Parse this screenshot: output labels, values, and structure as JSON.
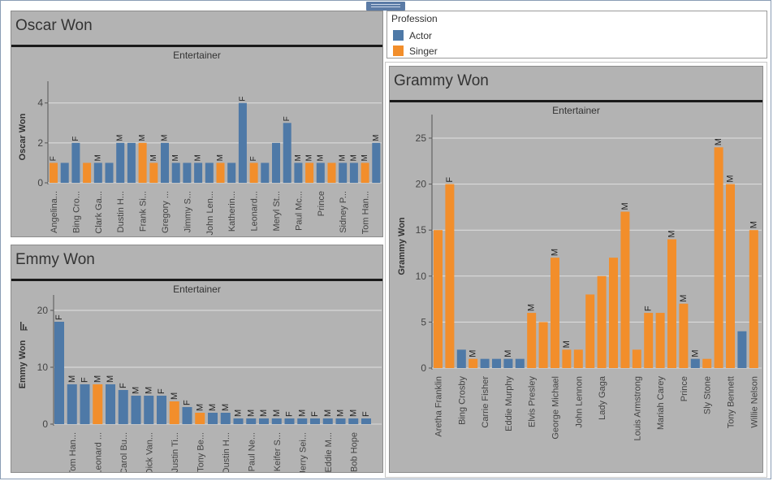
{
  "legend": {
    "title": "Profession",
    "items": [
      {
        "label": "Actor",
        "color": "#4e79a7"
      },
      {
        "label": "Singer",
        "color": "#f28e2b"
      }
    ]
  },
  "colors": {
    "Actor": "#4e79a7",
    "Singer": "#f28e2b",
    "panel_bg": "#b3b3b3"
  },
  "chart_data": [
    {
      "id": "oscar",
      "type": "bar",
      "title": "Oscar Won",
      "subtitle": "Entertainer",
      "ylabel": "Oscar Won",
      "ylim": [
        0,
        4.6
      ],
      "yticks": [
        0,
        2,
        4
      ],
      "grid": true,
      "bars": [
        {
          "value": 1,
          "gender": "F",
          "profession": "Singer",
          "label": "Angelina..."
        },
        {
          "value": 1,
          "gender": "",
          "profession": "Actor",
          "label": ""
        },
        {
          "value": 2,
          "gender": "F",
          "profession": "Actor",
          "label": "Bing Cro..."
        },
        {
          "value": 1,
          "gender": "",
          "profession": "Singer",
          "label": ""
        },
        {
          "value": 1,
          "gender": "M",
          "profession": "Actor",
          "label": "Clark Ga..."
        },
        {
          "value": 1,
          "gender": "",
          "profession": "Actor",
          "label": ""
        },
        {
          "value": 2,
          "gender": "M",
          "profession": "Actor",
          "label": "Dustin H..."
        },
        {
          "value": 2,
          "gender": "",
          "profession": "Actor",
          "label": ""
        },
        {
          "value": 2,
          "gender": "M",
          "profession": "Singer",
          "label": "Frank Si..."
        },
        {
          "value": 1,
          "gender": "M",
          "profession": "Singer",
          "label": ""
        },
        {
          "value": 2,
          "gender": "M",
          "profession": "Actor",
          "label": "Gregory ..."
        },
        {
          "value": 1,
          "gender": "M",
          "profession": "Actor",
          "label": ""
        },
        {
          "value": 1,
          "gender": "",
          "profession": "Actor",
          "label": "Jimmy S..."
        },
        {
          "value": 1,
          "gender": "M",
          "profession": "Actor",
          "label": ""
        },
        {
          "value": 1,
          "gender": "",
          "profession": "Actor",
          "label": "John Len..."
        },
        {
          "value": 1,
          "gender": "M",
          "profession": "Singer",
          "label": ""
        },
        {
          "value": 1,
          "gender": "",
          "profession": "Actor",
          "label": "Katherin..."
        },
        {
          "value": 4,
          "gender": "F",
          "profession": "Actor",
          "label": ""
        },
        {
          "value": 1,
          "gender": "F",
          "profession": "Singer",
          "label": "Leonard..."
        },
        {
          "value": 1,
          "gender": "",
          "profession": "Actor",
          "label": ""
        },
        {
          "value": 2,
          "gender": "",
          "profession": "Actor",
          "label": "Meryl St..."
        },
        {
          "value": 3,
          "gender": "F",
          "profession": "Actor",
          "label": ""
        },
        {
          "value": 1,
          "gender": "M",
          "profession": "Actor",
          "label": "Paul Mc..."
        },
        {
          "value": 1,
          "gender": "M",
          "profession": "Singer",
          "label": ""
        },
        {
          "value": 1,
          "gender": "M",
          "profession": "Actor",
          "label": "Prince"
        },
        {
          "value": 1,
          "gender": "",
          "profession": "Singer",
          "label": ""
        },
        {
          "value": 1,
          "gender": "M",
          "profession": "Actor",
          "label": "Sidney P..."
        },
        {
          "value": 1,
          "gender": "M",
          "profession": "Actor",
          "label": ""
        },
        {
          "value": 1,
          "gender": "M",
          "profession": "Singer",
          "label": "Tom Han..."
        },
        {
          "value": 2,
          "gender": "M",
          "profession": "Actor",
          "label": ""
        }
      ]
    },
    {
      "id": "emmy",
      "type": "bar",
      "title": "Emmy Won",
      "subtitle": "Entertainer",
      "ylabel": "Emmy Won",
      "ylim": [
        0,
        21
      ],
      "yticks": [
        0,
        10,
        20
      ],
      "grid": true,
      "bars": [
        {
          "value": 18,
          "gender": "F",
          "profession": "Actor",
          "label": ""
        },
        {
          "value": 7,
          "gender": "M",
          "profession": "Actor",
          "label": "Tom Han..."
        },
        {
          "value": 7,
          "gender": "F",
          "profession": "Actor",
          "label": ""
        },
        {
          "value": 7,
          "gender": "M",
          "profession": "Singer",
          "label": "Leonard ..."
        },
        {
          "value": 7,
          "gender": "M",
          "profession": "Actor",
          "label": ""
        },
        {
          "value": 6,
          "gender": "F",
          "profession": "Actor",
          "label": "Carol Bu..."
        },
        {
          "value": 5,
          "gender": "M",
          "profession": "Actor",
          "label": ""
        },
        {
          "value": 5,
          "gender": "M",
          "profession": "Actor",
          "label": "Dick Van..."
        },
        {
          "value": 5,
          "gender": "F",
          "profession": "Actor",
          "label": ""
        },
        {
          "value": 4,
          "gender": "M",
          "profession": "Singer",
          "label": "Justin Ti..."
        },
        {
          "value": 3,
          "gender": "F",
          "profession": "Actor",
          "label": ""
        },
        {
          "value": 2,
          "gender": "M",
          "profession": "Singer",
          "label": "Tony Be..."
        },
        {
          "value": 2,
          "gender": "M",
          "profession": "Actor",
          "label": ""
        },
        {
          "value": 2,
          "gender": "M",
          "profession": "Actor",
          "label": "Dustin H..."
        },
        {
          "value": 1,
          "gender": "M",
          "profession": "Actor",
          "label": ""
        },
        {
          "value": 1,
          "gender": "M",
          "profession": "Actor",
          "label": "Paul Ne..."
        },
        {
          "value": 1,
          "gender": "M",
          "profession": "Actor",
          "label": ""
        },
        {
          "value": 1,
          "gender": "M",
          "profession": "Actor",
          "label": "Keifer S..."
        },
        {
          "value": 1,
          "gender": "F",
          "profession": "Actor",
          "label": ""
        },
        {
          "value": 1,
          "gender": "M",
          "profession": "Actor",
          "label": "Jerry Sei..."
        },
        {
          "value": 1,
          "gender": "F",
          "profession": "Actor",
          "label": ""
        },
        {
          "value": 1,
          "gender": "M",
          "profession": "Actor",
          "label": "Eddie M..."
        },
        {
          "value": 1,
          "gender": "M",
          "profession": "Actor",
          "label": ""
        },
        {
          "value": 1,
          "gender": "M",
          "profession": "Actor",
          "label": "Bob Hope"
        },
        {
          "value": 1,
          "gender": "F",
          "profession": "Actor",
          "label": ""
        }
      ]
    },
    {
      "id": "grammy",
      "type": "bar",
      "title": "Grammy Won",
      "subtitle": "Entertainer",
      "ylabel": "Grammy Won",
      "ylim": [
        0,
        26.5
      ],
      "yticks": [
        0,
        5,
        10,
        15,
        20,
        25
      ],
      "grid": true,
      "bars": [
        {
          "value": 15,
          "gender": "",
          "profession": "Singer",
          "label": "Aretha Franklin"
        },
        {
          "value": 20,
          "gender": "F",
          "profession": "Singer",
          "label": ""
        },
        {
          "value": 2,
          "gender": "",
          "profession": "Actor",
          "label": "Bing Crosby"
        },
        {
          "value": 1,
          "gender": "M",
          "profession": "Singer",
          "label": ""
        },
        {
          "value": 1,
          "gender": "",
          "profession": "Actor",
          "label": "Carrie Fisher"
        },
        {
          "value": 1,
          "gender": "",
          "profession": "Actor",
          "label": ""
        },
        {
          "value": 1,
          "gender": "M",
          "profession": "Actor",
          "label": "Eddie Murphy"
        },
        {
          "value": 1,
          "gender": "",
          "profession": "Actor",
          "label": ""
        },
        {
          "value": 6,
          "gender": "M",
          "profession": "Singer",
          "label": "Elvis Presley"
        },
        {
          "value": 5,
          "gender": "",
          "profession": "Singer",
          "label": ""
        },
        {
          "value": 12,
          "gender": "M",
          "profession": "Singer",
          "label": "George Michael"
        },
        {
          "value": 2,
          "gender": "M",
          "profession": "Singer",
          "label": ""
        },
        {
          "value": 2,
          "gender": "",
          "profession": "Singer",
          "label": "John Lennon"
        },
        {
          "value": 8,
          "gender": "",
          "profession": "Singer",
          "label": ""
        },
        {
          "value": 10,
          "gender": "",
          "profession": "Singer",
          "label": "Lady Gaga"
        },
        {
          "value": 12,
          "gender": "",
          "profession": "Singer",
          "label": ""
        },
        {
          "value": 17,
          "gender": "M",
          "profession": "Singer",
          "label": ""
        },
        {
          "value": 2,
          "gender": "",
          "profession": "Singer",
          "label": "Louis Armstrong"
        },
        {
          "value": 6,
          "gender": "F",
          "profession": "Singer",
          "label": ""
        },
        {
          "value": 6,
          "gender": "",
          "profession": "Singer",
          "label": "Mariah Carey"
        },
        {
          "value": 14,
          "gender": "M",
          "profession": "Singer",
          "label": ""
        },
        {
          "value": 7,
          "gender": "M",
          "profession": "Singer",
          "label": "Prince"
        },
        {
          "value": 1,
          "gender": "M",
          "profession": "Actor",
          "label": ""
        },
        {
          "value": 1,
          "gender": "",
          "profession": "Singer",
          "label": "Sly Stone"
        },
        {
          "value": 24,
          "gender": "M",
          "profession": "Singer",
          "label": ""
        },
        {
          "value": 20,
          "gender": "M",
          "profession": "Singer",
          "label": "Tony Bennett"
        },
        {
          "value": 4,
          "gender": "",
          "profession": "Actor",
          "label": ""
        },
        {
          "value": 15,
          "gender": "M",
          "profession": "Singer",
          "label": "Willie Nelson"
        }
      ]
    }
  ]
}
